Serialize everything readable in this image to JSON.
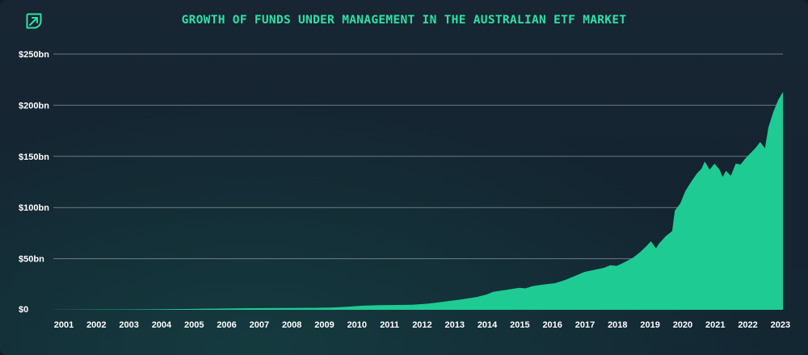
{
  "header": {
    "title": "GROWTH OF FUNDS UNDER MANAGEMENT IN THE AUSTRALIAN ETF MARKET",
    "logo_icon": "leaf-logo-icon"
  },
  "colors": {
    "accent": "#2fe0a6",
    "area": "#1ecb93",
    "background": "#162430"
  },
  "chart_data": {
    "type": "area",
    "title": "GROWTH OF FUNDS UNDER MANAGEMENT IN THE AUSTRALIAN ETF MARKET",
    "xlabel": "",
    "ylabel": "",
    "categories": [
      "2001",
      "2002",
      "2003",
      "2004",
      "2005",
      "2006",
      "2007",
      "2008",
      "2009",
      "2010",
      "2011",
      "2012",
      "2013",
      "2014",
      "2015",
      "2016",
      "2017",
      "2018",
      "2019",
      "2020",
      "2021",
      "2022",
      "2023"
    ],
    "y_ticks": [
      {
        "value": 0,
        "label": "$0"
      },
      {
        "value": 50,
        "label": "$50bn"
      },
      {
        "value": 100,
        "label": "$100bn"
      },
      {
        "value": 150,
        "label": "$150bn"
      },
      {
        "value": 200,
        "label": "$200bn"
      },
      {
        "value": 250,
        "label": "$250bn"
      }
    ],
    "ylim": [
      0,
      250
    ],
    "xlim": [
      2001,
      2023.4
    ],
    "grid": true,
    "legend": "none",
    "series": [
      {
        "values": [
          [
            2001.0,
            0.1
          ],
          [
            2002.0,
            0.2
          ],
          [
            2003.0,
            0.3
          ],
          [
            2004.0,
            0.5
          ],
          [
            2005.0,
            0.8
          ],
          [
            2006.0,
            1.2
          ],
          [
            2007.0,
            1.6
          ],
          [
            2008.0,
            1.8
          ],
          [
            2009.0,
            2.0
          ],
          [
            2009.5,
            2.2
          ],
          [
            2010.0,
            3.0
          ],
          [
            2010.5,
            4.0
          ],
          [
            2011.0,
            4.5
          ],
          [
            2011.5,
            4.7
          ],
          [
            2012.0,
            5.0
          ],
          [
            2012.5,
            6.0
          ],
          [
            2013.0,
            8.0
          ],
          [
            2013.5,
            10.0
          ],
          [
            2014.0,
            12.5
          ],
          [
            2014.3,
            15.0
          ],
          [
            2014.5,
            17.5
          ],
          [
            2015.0,
            20.0
          ],
          [
            2015.3,
            21.5
          ],
          [
            2015.5,
            21.0
          ],
          [
            2015.7,
            23.0
          ],
          [
            2016.0,
            24.5
          ],
          [
            2016.4,
            26.0
          ],
          [
            2016.7,
            29.0
          ],
          [
            2017.0,
            33.0
          ],
          [
            2017.3,
            37.0
          ],
          [
            2017.6,
            39.0
          ],
          [
            2017.9,
            41.0
          ],
          [
            2018.1,
            43.5
          ],
          [
            2018.3,
            43.0
          ],
          [
            2018.5,
            46.0
          ],
          [
            2018.8,
            51.0
          ],
          [
            2019.0,
            56.0
          ],
          [
            2019.2,
            62.0
          ],
          [
            2019.35,
            67.0
          ],
          [
            2019.5,
            60.0
          ],
          [
            2019.6,
            65.0
          ],
          [
            2019.8,
            72.0
          ],
          [
            2020.0,
            77.0
          ],
          [
            2020.08,
            97.0
          ],
          [
            2020.25,
            104.0
          ],
          [
            2020.4,
            116.0
          ],
          [
            2020.6,
            126.0
          ],
          [
            2020.75,
            133.0
          ],
          [
            2020.9,
            138.0
          ],
          [
            2021.0,
            145.0
          ],
          [
            2021.15,
            137.0
          ],
          [
            2021.3,
            143.0
          ],
          [
            2021.45,
            137.0
          ],
          [
            2021.55,
            130.0
          ],
          [
            2021.65,
            136.0
          ],
          [
            2021.8,
            131.0
          ],
          [
            2021.95,
            143.0
          ],
          [
            2022.1,
            142.0
          ],
          [
            2022.25,
            148.0
          ],
          [
            2022.4,
            153.0
          ],
          [
            2022.55,
            158.0
          ],
          [
            2022.7,
            164.0
          ],
          [
            2022.85,
            158.0
          ],
          [
            2022.95,
            178.0
          ],
          [
            2023.1,
            193.0
          ],
          [
            2023.25,
            205.0
          ],
          [
            2023.4,
            213.0
          ]
        ]
      }
    ]
  }
}
